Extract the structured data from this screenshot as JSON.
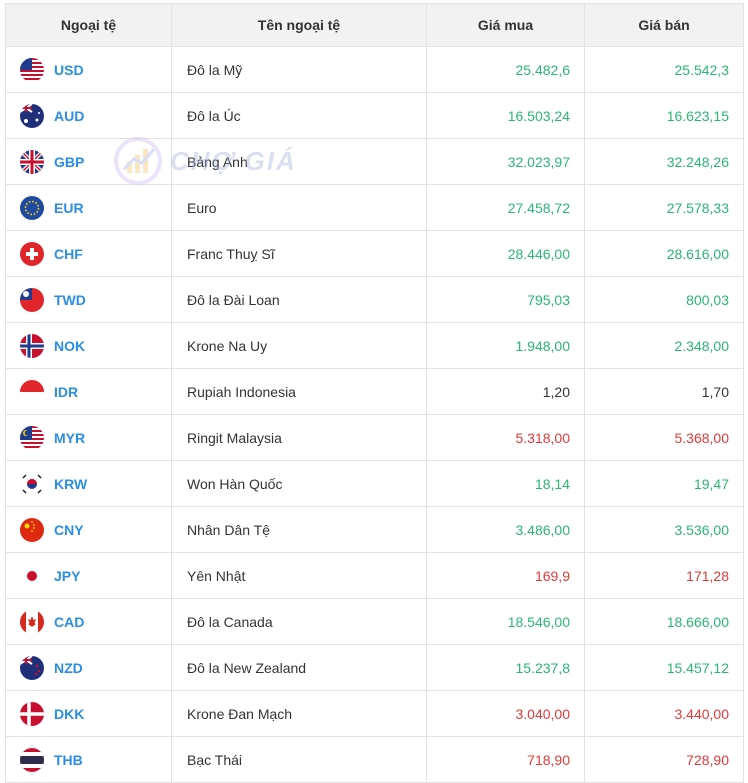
{
  "header": {
    "col_code": "Ngoại tệ",
    "col_name": "Tên ngoại tệ",
    "col_buy": "Giá mua",
    "col_sell": "Giá bán"
  },
  "watermark": {
    "text": "CHỢ GIÁ"
  },
  "colors": {
    "up": "#2bb673",
    "down": "#e33a3a",
    "flat": "#333333",
    "code": "#2a8ee6"
  },
  "rows": [
    {
      "code": "USD",
      "name": "Đô la Mỹ",
      "buy": "25.482,6",
      "sell": "25.542,3",
      "trend": "up",
      "flag": "us-flag-icon"
    },
    {
      "code": "AUD",
      "name": "Đô la Úc",
      "buy": "16.503,24",
      "sell": "16.623,15",
      "trend": "up",
      "flag": "au-flag-icon"
    },
    {
      "code": "GBP",
      "name": "Bảng Anh",
      "buy": "32.023,97",
      "sell": "32.248,26",
      "trend": "up",
      "flag": "gb-flag-icon"
    },
    {
      "code": "EUR",
      "name": "Euro",
      "buy": "27.458,72",
      "sell": "27.578,33",
      "trend": "up",
      "flag": "eu-flag-icon"
    },
    {
      "code": "CHF",
      "name": "Franc Thuỵ Sĩ",
      "buy": "28.446,00",
      "sell": "28.616,00",
      "trend": "up",
      "flag": "ch-flag-icon"
    },
    {
      "code": "TWD",
      "name": "Đô la Đài Loan",
      "buy": "795,03",
      "sell": "800,03",
      "trend": "up",
      "flag": "tw-flag-icon"
    },
    {
      "code": "NOK",
      "name": "Krone Na Uy",
      "buy": "1.948,00",
      "sell": "2.348,00",
      "trend": "up",
      "flag": "no-flag-icon"
    },
    {
      "code": "IDR",
      "name": "Rupiah Indonesia",
      "buy": "1,20",
      "sell": "1,70",
      "trend": "flat",
      "flag": "id-flag-icon"
    },
    {
      "code": "MYR",
      "name": "Ringit Malaysia",
      "buy": "5.318,00",
      "sell": "5.368,00",
      "trend": "down",
      "flag": "my-flag-icon"
    },
    {
      "code": "KRW",
      "name": "Won Hàn Quốc",
      "buy": "18,14",
      "sell": "19,47",
      "trend": "up",
      "flag": "kr-flag-icon"
    },
    {
      "code": "CNY",
      "name": "Nhân Dân Tệ",
      "buy": "3.486,00",
      "sell": "3.536,00",
      "trend": "up",
      "flag": "cn-flag-icon"
    },
    {
      "code": "JPY",
      "name": "Yên Nhật",
      "buy": "169,9",
      "sell": "171,28",
      "trend": "down",
      "flag": "jp-flag-icon"
    },
    {
      "code": "CAD",
      "name": "Đô la Canada",
      "buy": "18.546,00",
      "sell": "18.666,00",
      "trend": "up",
      "flag": "ca-flag-icon"
    },
    {
      "code": "NZD",
      "name": "Đô la New Zealand",
      "buy": "15.237,8",
      "sell": "15.457,12",
      "trend": "up",
      "flag": "nz-flag-icon"
    },
    {
      "code": "DKK",
      "name": "Krone Đan Mạch",
      "buy": "3.040,00",
      "sell": "3.440,00",
      "trend": "down",
      "flag": "dk-flag-icon"
    },
    {
      "code": "THB",
      "name": "Bạc Thái",
      "buy": "718,90",
      "sell": "728,90",
      "trend": "down",
      "flag": "th-flag-icon"
    }
  ]
}
